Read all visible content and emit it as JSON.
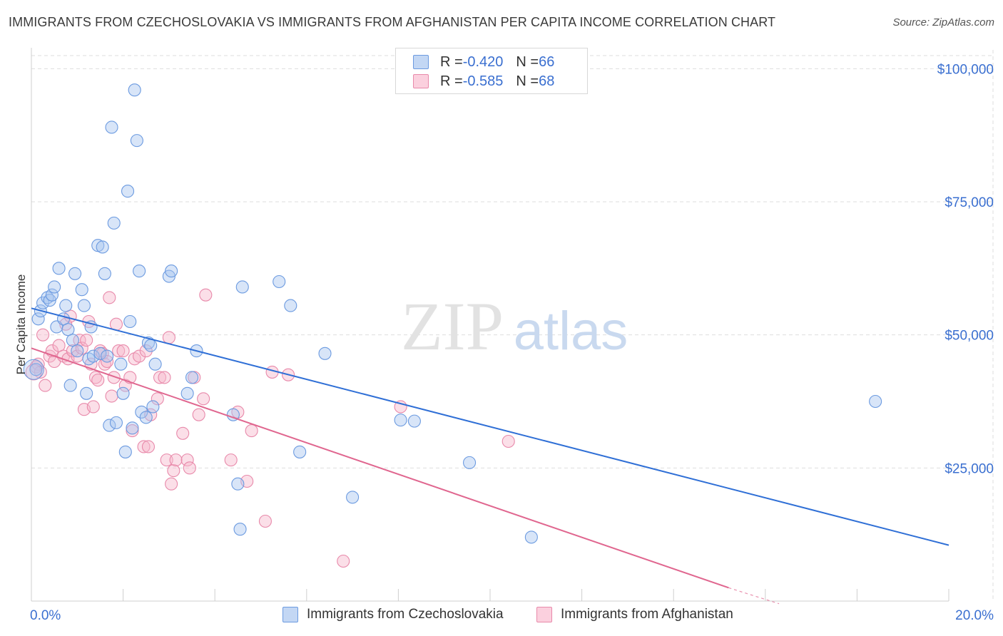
{
  "title": "IMMIGRANTS FROM CZECHOSLOVAKIA VS IMMIGRANTS FROM AFGHANISTAN PER CAPITA INCOME CORRELATION CHART",
  "source": "Source: ZipAtlas.com",
  "watermark": {
    "zip": "ZIP",
    "atlas": "atlas"
  },
  "legend": {
    "rows": [
      {
        "r_label": "R = ",
        "r_value": "-0.420",
        "n_label": "N = ",
        "n_value": "66"
      },
      {
        "r_label": "R = ",
        "r_value": "-0.585",
        "n_label": "N = ",
        "n_value": "68"
      }
    ]
  },
  "colors": {
    "czech_fill": "#a9c6f0",
    "czech_stroke": "#6b9ae0",
    "czech_line": "#2f6fd6",
    "afghan_fill": "#f6b9cd",
    "afghan_stroke": "#e889aa",
    "afghan_line": "#e0668f",
    "axis_text": "#3a6fd0",
    "grid": "#dddddd"
  },
  "chart_data": {
    "type": "scatter",
    "xlabel": "",
    "ylabel": "Per Capita Income",
    "xlim": [
      0,
      20
    ],
    "ylim": [
      0,
      105000
    ],
    "x_tick_labels": [
      "0.0%",
      "20.0%"
    ],
    "y_ticks": [
      25000,
      50000,
      75000,
      100000
    ],
    "y_tick_labels": [
      "$25,000",
      "$50,000",
      "$75,000",
      "$100,000"
    ],
    "grid": true,
    "series": [
      {
        "name": "Immigrants from Czechoslovakia",
        "R": -0.42,
        "N": 66,
        "trend": {
          "x": [
            0,
            20
          ],
          "y": [
            55000,
            10500
          ]
        },
        "points": [
          [
            0.1,
            43500
          ],
          [
            0.15,
            53000
          ],
          [
            0.2,
            54500
          ],
          [
            0.25,
            56000
          ],
          [
            0.35,
            57000
          ],
          [
            0.4,
            56500
          ],
          [
            0.45,
            57500
          ],
          [
            0.5,
            59000
          ],
          [
            0.55,
            51500
          ],
          [
            0.6,
            62500
          ],
          [
            0.7,
            53000
          ],
          [
            0.75,
            55500
          ],
          [
            0.8,
            51000
          ],
          [
            0.85,
            40500
          ],
          [
            0.9,
            49000
          ],
          [
            0.95,
            61500
          ],
          [
            1.0,
            47000
          ],
          [
            1.1,
            58500
          ],
          [
            1.15,
            55500
          ],
          [
            1.2,
            39000
          ],
          [
            1.25,
            45500
          ],
          [
            1.3,
            51500
          ],
          [
            1.35,
            46000
          ],
          [
            1.45,
            66800
          ],
          [
            1.5,
            46500
          ],
          [
            1.55,
            66500
          ],
          [
            1.6,
            61500
          ],
          [
            1.65,
            46000
          ],
          [
            1.7,
            33000
          ],
          [
            1.75,
            89000
          ],
          [
            1.8,
            71000
          ],
          [
            1.85,
            33500
          ],
          [
            1.95,
            44500
          ],
          [
            2.0,
            39000
          ],
          [
            2.05,
            28000
          ],
          [
            2.1,
            77000
          ],
          [
            2.15,
            52500
          ],
          [
            2.2,
            32500
          ],
          [
            2.25,
            96000
          ],
          [
            2.3,
            86500
          ],
          [
            2.35,
            62000
          ],
          [
            2.4,
            35500
          ],
          [
            2.5,
            34500
          ],
          [
            2.55,
            48500
          ],
          [
            2.65,
            36500
          ],
          [
            2.7,
            44500
          ],
          [
            3.0,
            61000
          ],
          [
            3.05,
            62000
          ],
          [
            3.4,
            39000
          ],
          [
            3.5,
            42000
          ],
          [
            3.6,
            47000
          ],
          [
            4.4,
            35000
          ],
          [
            4.5,
            22000
          ],
          [
            4.55,
            13500
          ],
          [
            4.6,
            59000
          ],
          [
            5.4,
            60000
          ],
          [
            5.65,
            55500
          ],
          [
            5.85,
            28000
          ],
          [
            6.4,
            46500
          ],
          [
            7.0,
            19500
          ],
          [
            8.05,
            34000
          ],
          [
            8.35,
            33800
          ],
          [
            9.55,
            26000
          ],
          [
            10.9,
            12000
          ],
          [
            18.4,
            37500
          ],
          [
            2.6,
            48000
          ]
        ]
      },
      {
        "name": "Immigrants from Afghanistan",
        "R": -0.585,
        "N": 68,
        "trend": {
          "x": [
            0,
            15.2
          ],
          "y": [
            47500,
            2500
          ]
        },
        "trend_dashed": {
          "x": [
            15.2,
            16.3
          ],
          "y": [
            2500,
            -500
          ]
        },
        "points": [
          [
            0.1,
            44000
          ],
          [
            0.15,
            44500
          ],
          [
            0.2,
            43000
          ],
          [
            0.25,
            50000
          ],
          [
            0.3,
            40500
          ],
          [
            0.4,
            46000
          ],
          [
            0.45,
            47000
          ],
          [
            0.5,
            45000
          ],
          [
            0.6,
            48000
          ],
          [
            0.7,
            46000
          ],
          [
            0.75,
            52000
          ],
          [
            0.8,
            45500
          ],
          [
            0.85,
            53500
          ],
          [
            0.9,
            47000
          ],
          [
            1.0,
            46000
          ],
          [
            1.05,
            49000
          ],
          [
            1.1,
            47500
          ],
          [
            1.15,
            36000
          ],
          [
            1.2,
            49000
          ],
          [
            1.25,
            52500
          ],
          [
            1.3,
            44500
          ],
          [
            1.35,
            36500
          ],
          [
            1.4,
            42000
          ],
          [
            1.45,
            41500
          ],
          [
            1.5,
            47000
          ],
          [
            1.55,
            46500
          ],
          [
            1.6,
            44500
          ],
          [
            1.65,
            45000
          ],
          [
            1.7,
            57000
          ],
          [
            1.75,
            38500
          ],
          [
            1.8,
            42000
          ],
          [
            1.85,
            52000
          ],
          [
            1.9,
            47000
          ],
          [
            2.0,
            47000
          ],
          [
            2.05,
            40500
          ],
          [
            2.15,
            42000
          ],
          [
            2.2,
            32000
          ],
          [
            2.25,
            45500
          ],
          [
            2.35,
            46000
          ],
          [
            2.45,
            29000
          ],
          [
            2.5,
            47000
          ],
          [
            2.55,
            29000
          ],
          [
            2.6,
            35000
          ],
          [
            2.75,
            38000
          ],
          [
            2.8,
            42000
          ],
          [
            2.9,
            42000
          ],
          [
            2.95,
            26500
          ],
          [
            3.0,
            49500
          ],
          [
            3.05,
            22000
          ],
          [
            3.1,
            24500
          ],
          [
            3.15,
            26500
          ],
          [
            3.3,
            31500
          ],
          [
            3.4,
            26500
          ],
          [
            3.45,
            25000
          ],
          [
            3.55,
            42000
          ],
          [
            3.65,
            35000
          ],
          [
            3.75,
            38000
          ],
          [
            3.8,
            57500
          ],
          [
            4.35,
            26500
          ],
          [
            4.5,
            35500
          ],
          [
            4.7,
            22500
          ],
          [
            4.8,
            32000
          ],
          [
            5.1,
            15000
          ],
          [
            5.25,
            43000
          ],
          [
            5.6,
            42500
          ],
          [
            6.8,
            7500
          ],
          [
            8.05,
            36500
          ],
          [
            10.4,
            30000
          ]
        ]
      }
    ]
  }
}
